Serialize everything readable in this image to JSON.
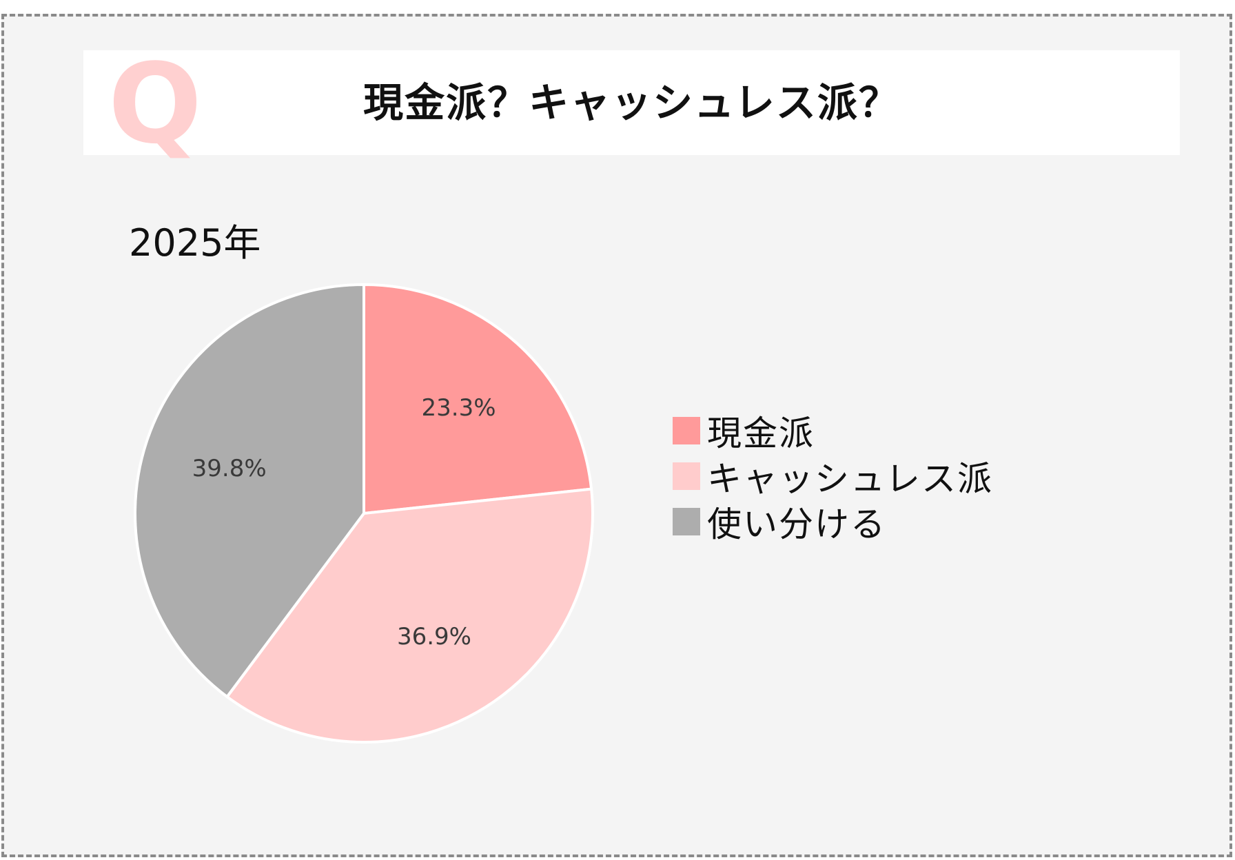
{
  "header": {
    "q_mark": "Q",
    "title": "現金派？キャッシュレス派？"
  },
  "chart_data": {
    "type": "pie",
    "title": "2025年",
    "categories": [
      "現金派",
      "キャッシュレス派",
      "使い分ける"
    ],
    "values": [
      23.3,
      36.9,
      39.8
    ],
    "labels": [
      "23.3%",
      "36.9%",
      "39.8%"
    ],
    "colors": [
      "#ff9a9a",
      "#ffcccc",
      "#adadad"
    ],
    "start_angle": "12 o'clock",
    "direction": "clockwise",
    "legend_position": "right"
  }
}
